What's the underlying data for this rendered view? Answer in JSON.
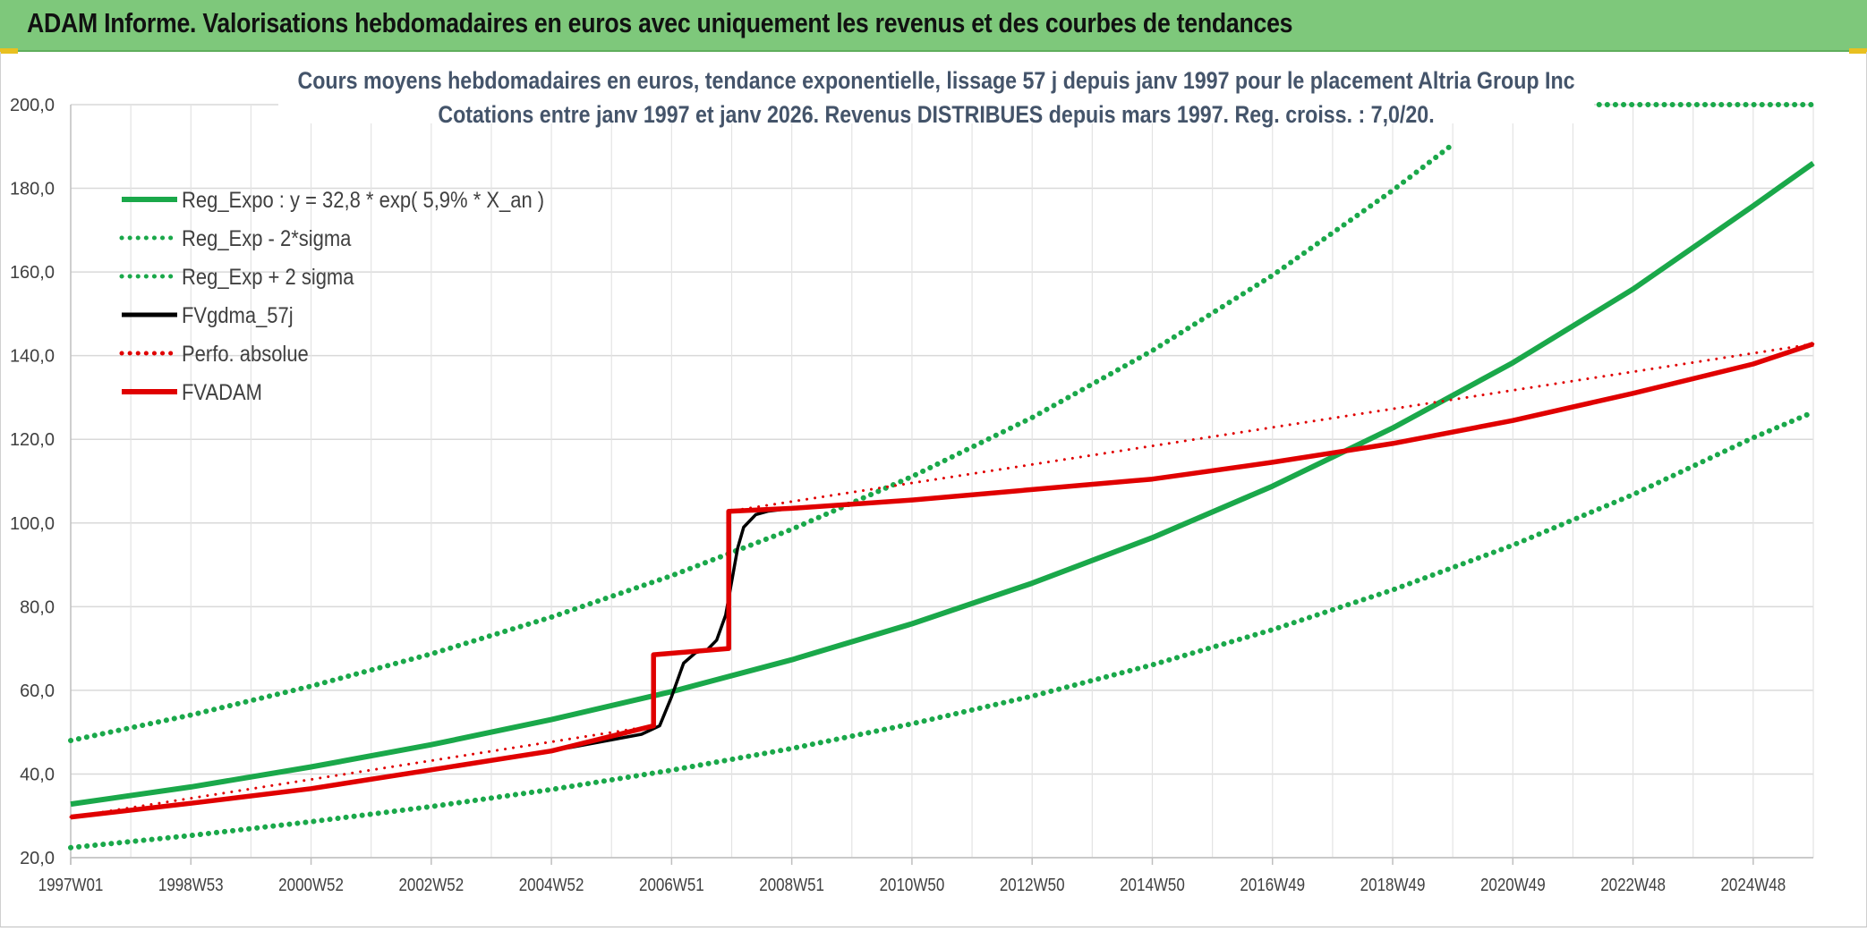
{
  "header": {
    "title": "ADAM Informe. Valorisations hebdomadaires en euros avec uniquement les revenus et des courbes de tendances"
  },
  "chart_data": {
    "type": "line",
    "title": "Cours moyens hebdomadaires en euros, tendance exponentielle, lissage 57 j depuis janv 1997 pour le placement Altria Group Inc",
    "subtitle": "Cotations entre janv 1997 et janv 2026. Revenus DISTRIBUES depuis mars 1997. Reg. croiss. : 7,0/20.",
    "x_range": [
      1997.0,
      2026.0
    ],
    "ylim": [
      20,
      200
    ],
    "grid": true,
    "legend_position": "top-left",
    "y_ticks": [
      "20,0",
      "40,0",
      "60,0",
      "80,0",
      "100,0",
      "120,0",
      "140,0",
      "160,0",
      "180,0",
      "200,0"
    ],
    "x_ticks": [
      {
        "label": "1997W01",
        "x": 1997.0
      },
      {
        "label": "1998W53",
        "x": 1999.0
      },
      {
        "label": "2000W52",
        "x": 2001.0
      },
      {
        "label": "2002W52",
        "x": 2003.0
      },
      {
        "label": "2004W52",
        "x": 2005.0
      },
      {
        "label": "2006W51",
        "x": 2007.0
      },
      {
        "label": "2008W51",
        "x": 2009.0
      },
      {
        "label": "2010W50",
        "x": 2011.0
      },
      {
        "label": "2012W50",
        "x": 2013.0
      },
      {
        "label": "2014W50",
        "x": 2015.0
      },
      {
        "label": "2016W49",
        "x": 2017.0
      },
      {
        "label": "2018W49",
        "x": 2019.0
      },
      {
        "label": "2020W49",
        "x": 2021.0
      },
      {
        "label": "2022W48",
        "x": 2023.0
      },
      {
        "label": "2024W48",
        "x": 2025.0
      }
    ],
    "series": [
      {
        "name": "Reg_Expo : y = 32,8 * exp( 5,9% *  X_an )",
        "color": "#1aa84a",
        "style": "solid",
        "x": [
          1997.0,
          1999.0,
          2001.0,
          2003.0,
          2005.0,
          2007.0,
          2009.0,
          2011.0,
          2013.0,
          2015.0,
          2017.0,
          2019.0,
          2021.0,
          2023.0,
          2025.0,
          2026.0
        ],
        "y": [
          32.8,
          36.9,
          41.7,
          47.0,
          53.0,
          59.7,
          67.3,
          75.9,
          85.6,
          96.5,
          108.8,
          122.7,
          138.3,
          155.9,
          175.8,
          186.0
        ]
      },
      {
        "name": "Reg_Exp - 2*sigma",
        "color": "#1aa84a",
        "style": "dotted",
        "x": [
          1997.0,
          1999.0,
          2001.0,
          2003.0,
          2005.0,
          2007.0,
          2009.0,
          2011.0,
          2013.0,
          2015.0,
          2017.0,
          2019.0,
          2021.0,
          2023.0,
          2025.0,
          2026.0
        ],
        "y": [
          22.4,
          25.3,
          28.6,
          32.2,
          36.3,
          40.9,
          46.1,
          52.0,
          58.6,
          66.1,
          74.5,
          84.0,
          94.7,
          106.8,
          120.4,
          126.5
        ]
      },
      {
        "name": "Reg_Exp + 2 sigma",
        "color": "#1aa84a",
        "style": "dotted",
        "x": [
          1997.0,
          1999.0,
          2001.0,
          2003.0,
          2005.0,
          2007.0,
          2009.0,
          2011.0,
          2013.0,
          2015.0,
          2017.0,
          2019.0,
          2020.0
        ],
        "y": [
          48.0,
          54.1,
          61.0,
          68.7,
          77.5,
          87.4,
          98.5,
          111.1,
          125.2,
          141.2,
          159.2,
          179.5,
          190.5
        ]
      },
      {
        "name": "Reg_Exp + 2 sigma (tail)",
        "color": "#1aa84a",
        "style": "dotted",
        "x": [
          2022.3,
          2026.0
        ],
        "y": [
          200.0,
          200.0
        ]
      },
      {
        "name": "FVgdma_57j",
        "color": "#000000",
        "style": "solid",
        "x": [
          1997.0,
          1999.0,
          2001.0,
          2003.0,
          2005.0,
          2006.5,
          2006.8,
          2007.0,
          2007.2,
          2007.4,
          2007.6,
          2007.75,
          2007.9,
          2008.0,
          2008.1,
          2008.2,
          2008.4,
          2008.6,
          2009.0,
          2011.0,
          2013.0,
          2015.0,
          2017.0,
          2019.0,
          2021.0,
          2023.0,
          2025.0,
          2026.0
        ],
        "y": [
          29.7,
          33.0,
          36.5,
          41.0,
          45.5,
          49.5,
          51.5,
          58.5,
          66.5,
          69.0,
          69.8,
          72.0,
          78.0,
          86.0,
          94.0,
          99.0,
          102.0,
          102.8,
          103.5,
          105.5,
          108.0,
          110.5,
          114.5,
          119.0,
          124.5,
          131.0,
          138.0,
          142.8
        ]
      },
      {
        "name": "Perfo. absolue",
        "color": "#e00000",
        "style": "dotted",
        "x": [
          1997.0,
          2006.7,
          2006.7,
          2007.95,
          2007.95,
          2026.0
        ],
        "y": [
          29.7,
          51.5,
          68.5,
          70.0,
          102.8,
          142.8
        ]
      },
      {
        "name": "FVADAM",
        "color": "#e00000",
        "style": "solid",
        "x": [
          1997.0,
          1999.0,
          2001.0,
          2003.0,
          2005.0,
          2006.7,
          2006.7,
          2007.95,
          2007.95,
          2009.0,
          2011.0,
          2013.0,
          2015.0,
          2017.0,
          2019.0,
          2021.0,
          2023.0,
          2025.0,
          2026.0
        ],
        "y": [
          29.7,
          33.0,
          36.5,
          41.0,
          45.5,
          51.5,
          68.5,
          70.0,
          102.8,
          103.5,
          105.5,
          108.0,
          110.5,
          114.5,
          119.0,
          124.5,
          131.0,
          138.0,
          142.8
        ]
      }
    ],
    "legend": [
      {
        "label": "Reg_Expo : y = 32,8 * exp( 5,9% *  X_an )",
        "color": "#1aa84a",
        "style": "solid"
      },
      {
        "label": "Reg_Exp - 2*sigma",
        "color": "#1aa84a",
        "style": "dotted"
      },
      {
        "label": "Reg_Exp + 2 sigma",
        "color": "#1aa84a",
        "style": "dotted"
      },
      {
        "label": "FVgdma_57j",
        "color": "#000000",
        "style": "solid"
      },
      {
        "label": "Perfo. absolue",
        "color": "#e00000",
        "style": "dotted"
      },
      {
        "label": "FVADAM",
        "color": "#e00000",
        "style": "solid"
      }
    ]
  }
}
